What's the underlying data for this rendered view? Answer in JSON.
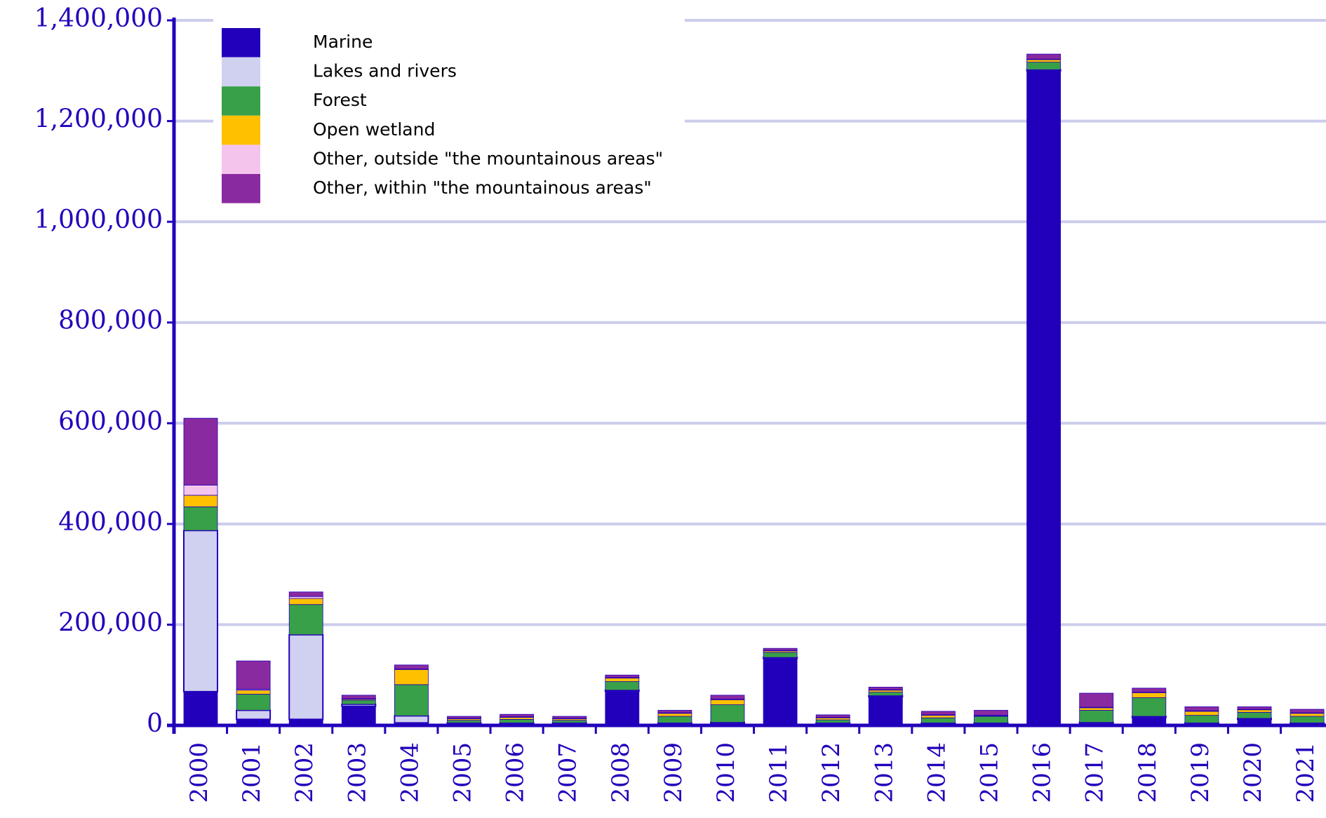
{
  "chart_data": {
    "type": "stacked_bar",
    "categories": [
      "2000",
      "2001",
      "2002",
      "2003",
      "2004",
      "2005",
      "2006",
      "2007",
      "2008",
      "2009",
      "2010",
      "2011",
      "2012",
      "2013",
      "2014",
      "2015",
      "2016",
      "2017",
      "2018",
      "2019",
      "2020",
      "2021"
    ],
    "series": [
      {
        "name": "Marine",
        "color": "#2200bb",
        "values": [
          67000,
          12000,
          12000,
          38000,
          5000,
          3000,
          3000,
          3000,
          68000,
          3000,
          4000,
          133000,
          3000,
          57000,
          3000,
          3000,
          1300000,
          4000,
          16000,
          3000,
          12000,
          3000
        ]
      },
      {
        "name": "Lakes and rivers",
        "color": "#d0d0f0",
        "values": [
          320000,
          18000,
          168000,
          4000,
          14000,
          2000,
          2000,
          2000,
          2000,
          2000,
          2000,
          2000,
          2000,
          2000,
          2000,
          2000,
          2000,
          2000,
          2000,
          2000,
          2000,
          2000
        ]
      },
      {
        "name": "Forest",
        "color": "#38a048",
        "values": [
          47000,
          32000,
          60000,
          8000,
          62000,
          5000,
          7000,
          5000,
          17000,
          13000,
          35000,
          10000,
          6000,
          7000,
          10000,
          13000,
          15000,
          24000,
          37000,
          15000,
          12000,
          13000
        ]
      },
      {
        "name": "Open wetland",
        "color": "#ffc000",
        "values": [
          23000,
          8000,
          12000,
          2000,
          30000,
          3000,
          4000,
          3000,
          7000,
          6000,
          10000,
          3000,
          4000,
          4000,
          5000,
          1000,
          5000,
          5000,
          10000,
          8000,
          5000,
          6000
        ]
      },
      {
        "name": "Other, outside \"the mountainous areas\"",
        "color": "#f4c4ec",
        "values": [
          20000,
          2000,
          4000,
          1000,
          1000,
          1000,
          1000,
          1000,
          1000,
          1000,
          1000,
          1000,
          1000,
          1000,
          1000,
          1000,
          1000,
          1000,
          1000,
          1000,
          1000,
          1000
        ]
      },
      {
        "name": "Other, within \"the mountainous areas\"",
        "color": "#8a2aa0",
        "values": [
          133000,
          56000,
          9000,
          7000,
          8000,
          4000,
          5000,
          4000,
          5000,
          5000,
          8000,
          4000,
          5000,
          5000,
          7000,
          10000,
          10000,
          28000,
          8000,
          8000,
          5000,
          7000
        ]
      }
    ],
    "ylim": [
      0,
      1400000
    ],
    "yticks": [
      {
        "value": 0,
        "label": "0"
      },
      {
        "value": 200000,
        "label": "200,000"
      },
      {
        "value": 400000,
        "label": "400,000"
      },
      {
        "value": 600000,
        "label": "600,000"
      },
      {
        "value": 800000,
        "label": "800,000"
      },
      {
        "value": 1000000,
        "label": "1,000,000"
      },
      {
        "value": 1200000,
        "label": "1,200,000"
      },
      {
        "value": 1400000,
        "label": "1,400,000"
      }
    ],
    "grid": true,
    "legend": "upper left"
  }
}
